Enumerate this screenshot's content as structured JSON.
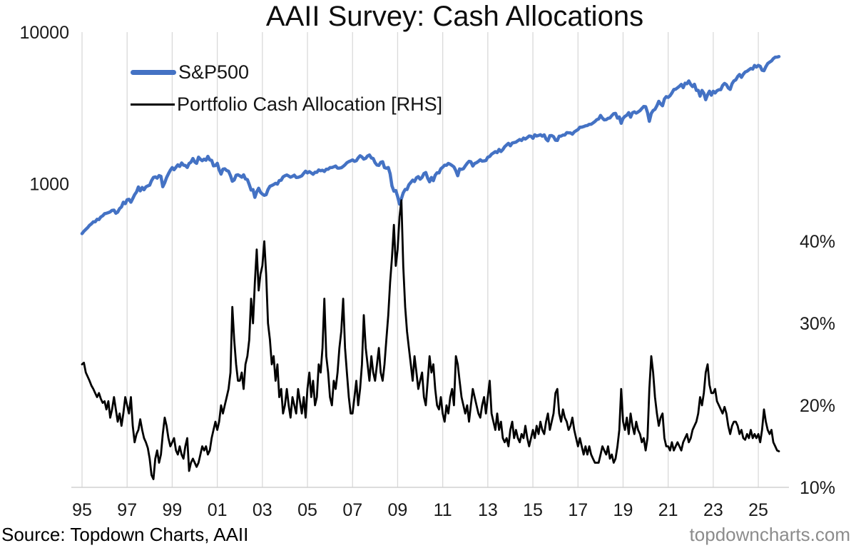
{
  "header": {
    "title": "AAII Survey: Cash Allocations"
  },
  "legend": {
    "items": [
      {
        "label": "S&P500",
        "color": "#4472C4"
      },
      {
        "label": "Portfolio Cash Allocation [RHS]",
        "color": "#000000"
      }
    ]
  },
  "footer": {
    "source": "Source: Topdown Charts, AAII",
    "watermark": "topdowncharts.com",
    "watermark_color": "#8c8c8c"
  },
  "colors": {
    "sp500": "#4472C4",
    "cash": "#000000",
    "gridline": "#d9d9d9",
    "axis_line": "#d0d0d0",
    "tick_text": "#1a1a1a"
  },
  "chart_data": {
    "type": "line",
    "title": "AAII Survey: Cash Allocations",
    "frequency": "monthly",
    "start_year": 1995,
    "x_axis": {
      "tick_labels": [
        "95",
        "97",
        "99",
        "01",
        "03",
        "05",
        "07",
        "09",
        "11",
        "13",
        "15",
        "17",
        "19",
        "21",
        "23",
        "25"
      ],
      "tick_years": [
        1995,
        1997,
        1999,
        2001,
        2003,
        2005,
        2007,
        2009,
        2011,
        2013,
        2015,
        2017,
        2019,
        2021,
        2023,
        2025
      ],
      "range_years": [
        1995,
        2026.2
      ]
    },
    "left_axis": {
      "scale": "log",
      "tick_labels": [
        "10000",
        "1000"
      ],
      "tick_values": [
        10000,
        1000
      ],
      "ylim": [
        10,
        10000
      ],
      "series": "S&P500"
    },
    "right_axis": {
      "scale": "linear",
      "tick_labels": [
        "40%",
        "30%",
        "20%",
        "10%"
      ],
      "tick_values": [
        40,
        30,
        20,
        10
      ],
      "ylim": [
        10,
        65.5
      ],
      "series": "Portfolio Cash Allocation [RHS]"
    },
    "gridlines": {
      "vertical": true,
      "horizontal": false
    },
    "legend_position": "top-left-inside",
    "series": [
      {
        "name": "S&P500",
        "axis": "left",
        "color": "#4472C4",
        "stroke_width": 4.5,
        "values": [
          470,
          487,
          501,
          515,
          533,
          545,
          562,
          562,
          584,
          582,
          605,
          616,
          636,
          640,
          646,
          654,
          669,
          671,
          640,
          652,
          687,
          705,
          757,
          741,
          786,
          791,
          757,
          801,
          848,
          885,
          954,
          899,
          947,
          915,
          955,
          970,
          980,
          1049,
          1102,
          1112,
          1090,
          1134,
          1121,
          957,
          1017,
          1099,
          1164,
          1229,
          1280,
          1238,
          1286,
          1335,
          1302,
          1373,
          1329,
          1320,
          1283,
          1363,
          1389,
          1469,
          1394,
          1366,
          1499,
          1452,
          1421,
          1455,
          1431,
          1518,
          1437,
          1429,
          1315,
          1320,
          1366,
          1240,
          1160,
          1249,
          1256,
          1224,
          1211,
          1134,
          1041,
          1060,
          1139,
          1148,
          1130,
          1107,
          1147,
          1077,
          1067,
          990,
          911,
          916,
          815,
          886,
          936,
          880,
          856,
          841,
          848,
          917,
          964,
          975,
          990,
          1008,
          996,
          1051,
          1058,
          1112,
          1131,
          1145,
          1126,
          1107,
          1121,
          1141,
          1102,
          1104,
          1115,
          1130,
          1174,
          1212,
          1181,
          1204,
          1181,
          1157,
          1192,
          1191,
          1234,
          1220,
          1229,
          1207,
          1249,
          1248,
          1280,
          1281,
          1295,
          1311,
          1270,
          1270,
          1277,
          1304,
          1336,
          1378,
          1401,
          1418,
          1438,
          1407,
          1421,
          1482,
          1531,
          1503,
          1455,
          1474,
          1527,
          1549,
          1481,
          1468,
          1379,
          1331,
          1323,
          1386,
          1400,
          1280,
          1267,
          1283,
          1166,
          969,
          896,
          903,
          826,
          735,
          798,
          873,
          919,
          919,
          987,
          1021,
          1057,
          1036,
          1096,
          1115,
          1074,
          1104,
          1169,
          1187,
          1089,
          1031,
          1102,
          1049,
          1141,
          1183,
          1181,
          1258,
          1286,
          1327,
          1326,
          1364,
          1345,
          1321,
          1292,
          1219,
          1131,
          1253,
          1247,
          1258,
          1312,
          1366,
          1408,
          1398,
          1310,
          1362,
          1379,
          1407,
          1441,
          1412,
          1416,
          1426,
          1498,
          1515,
          1569,
          1598,
          1631,
          1606,
          1686,
          1633,
          1682,
          1757,
          1806,
          1848,
          1783,
          1859,
          1872,
          1884,
          1924,
          1960,
          1931,
          2003,
          1972,
          2018,
          2068,
          2059,
          1995,
          2105,
          2068,
          2086,
          2107,
          2063,
          2104,
          1972,
          1920,
          2079,
          2080,
          2044,
          1940,
          1932,
          2060,
          2065,
          2097,
          2099,
          2174,
          2171,
          2168,
          2126,
          2199,
          2239,
          2279,
          2364,
          2363,
          2384,
          2412,
          2423,
          2470,
          2472,
          2519,
          2575,
          2648,
          2674,
          2824,
          2714,
          2641,
          2648,
          2705,
          2718,
          2816,
          2902,
          2914,
          2712,
          2760,
          2507,
          2704,
          2784,
          2834,
          2946,
          2752,
          2942,
          2980,
          2926,
          2977,
          3038,
          3141,
          3231,
          3226,
          2954,
          2585,
          2912,
          3044,
          3100,
          3271,
          3500,
          3363,
          3270,
          3622,
          3756,
          3714,
          3811,
          3973,
          4181,
          4204,
          4298,
          4395,
          4523,
          4308,
          4605,
          4567,
          4766,
          4516,
          4374,
          4530,
          4132,
          4132,
          3785,
          4130,
          3955,
          3586,
          3872,
          4080,
          3840,
          4077,
          3970,
          4109,
          4169,
          4180,
          4450,
          4589,
          4508,
          4288,
          4194,
          4568,
          4770,
          4846,
          5096,
          5254,
          5036,
          5278,
          5460,
          5522,
          5648,
          5762,
          5705,
          6032,
          5882,
          6041,
          5955,
          5612,
          5569,
          5912,
          6205,
          6339,
          6460,
          6688,
          6840,
          6849,
          6900
        ]
      },
      {
        "name": "Portfolio Cash Allocation [RHS]",
        "axis": "right",
        "color": "#000000",
        "stroke_width": 2.8,
        "values": [
          25,
          25.2,
          24,
          23.5,
          23,
          22.4,
          22,
          21.5,
          21,
          21.5,
          20.8,
          20.3,
          20.5,
          19.5,
          20.5,
          18.5,
          19.5,
          21,
          19.5,
          18,
          19,
          17.5,
          19,
          21,
          20,
          19,
          21,
          17.5,
          15.5,
          16.5,
          17,
          18.3,
          17,
          16,
          15.5,
          14.8,
          13.5,
          11.5,
          11,
          13.5,
          14.5,
          13,
          14,
          16.5,
          18.5,
          17.5,
          16,
          15,
          15.5,
          16,
          14.5,
          14,
          15,
          14,
          13.5,
          15,
          16,
          12,
          13,
          13.5,
          13,
          12.5,
          13,
          14,
          15,
          14.5,
          15,
          14,
          14.5,
          16,
          17,
          18,
          17,
          18,
          20,
          19,
          20,
          21,
          22,
          24,
          32,
          28,
          25,
          23,
          23,
          24,
          22,
          25,
          26,
          28,
          33,
          30,
          35,
          39,
          34,
          36,
          37,
          40,
          36,
          30,
          28,
          25,
          26,
          23,
          25,
          21,
          22,
          19,
          20,
          22,
          20,
          18.5,
          21,
          20,
          19,
          22,
          20.5,
          19,
          21,
          18.5,
          22,
          24,
          21,
          23,
          20,
          21,
          25,
          24,
          27,
          33,
          26,
          24,
          21,
          20,
          23,
          22,
          24,
          27,
          29,
          33,
          27,
          24,
          21,
          19,
          19,
          21,
          23,
          20,
          22,
          25,
          31,
          27,
          25,
          23,
          26,
          24,
          23,
          25,
          27,
          24,
          23,
          25,
          28,
          31,
          35,
          38,
          42,
          37,
          39,
          43,
          45,
          37,
          32,
          29,
          27,
          25,
          23,
          26,
          24,
          22,
          23,
          24,
          21,
          20,
          23,
          26,
          24,
          25,
          22,
          20,
          19.5,
          21,
          19,
          18,
          20,
          19,
          21,
          22,
          20,
          26,
          25,
          23,
          21,
          20,
          19,
          20,
          18,
          20,
          22,
          21,
          20,
          19,
          18.5,
          20,
          21,
          19,
          21,
          23,
          19,
          18,
          17,
          19,
          17,
          18,
          16,
          15.5,
          16,
          15,
          17,
          18,
          16,
          17,
          16,
          15.5,
          16.5,
          16,
          17.5,
          16,
          15,
          16,
          17,
          16,
          17.5,
          16.5,
          18,
          17,
          16.5,
          18,
          19,
          17,
          18,
          19,
          21.5,
          22,
          19,
          18,
          19.5,
          18.5,
          18,
          17,
          17.5,
          18.5,
          17,
          16,
          15,
          16,
          15,
          14,
          15,
          14,
          15,
          14,
          13.5,
          13,
          13,
          13,
          14,
          15,
          14.5,
          14,
          15,
          13.5,
          14,
          13,
          13.5,
          15,
          17,
          22,
          18,
          17,
          18.5,
          16.5,
          19,
          17.5,
          16.5,
          18,
          17,
          16.5,
          15.5,
          16,
          14.5,
          16,
          22,
          26,
          24,
          21,
          19,
          17.5,
          18.5,
          19,
          16,
          15,
          15,
          14.5,
          15.5,
          14.5,
          15,
          15.5,
          15,
          14.5,
          15.5,
          16,
          16.5,
          15.5,
          16,
          17,
          17.5,
          18,
          19,
          21,
          20,
          21.5,
          24,
          25,
          22.5,
          21.5,
          21.5,
          22,
          20.5,
          20,
          19.5,
          19,
          19.8,
          19,
          17.5,
          16.5,
          17.5,
          18,
          18,
          17.5,
          16.5,
          17,
          16,
          15.8,
          16.5,
          16,
          17,
          16,
          16.5,
          16,
          16.5,
          15.5,
          17,
          19.5,
          18,
          17,
          16.5,
          17,
          15.5,
          15,
          14.5,
          14.4
        ]
      }
    ]
  }
}
